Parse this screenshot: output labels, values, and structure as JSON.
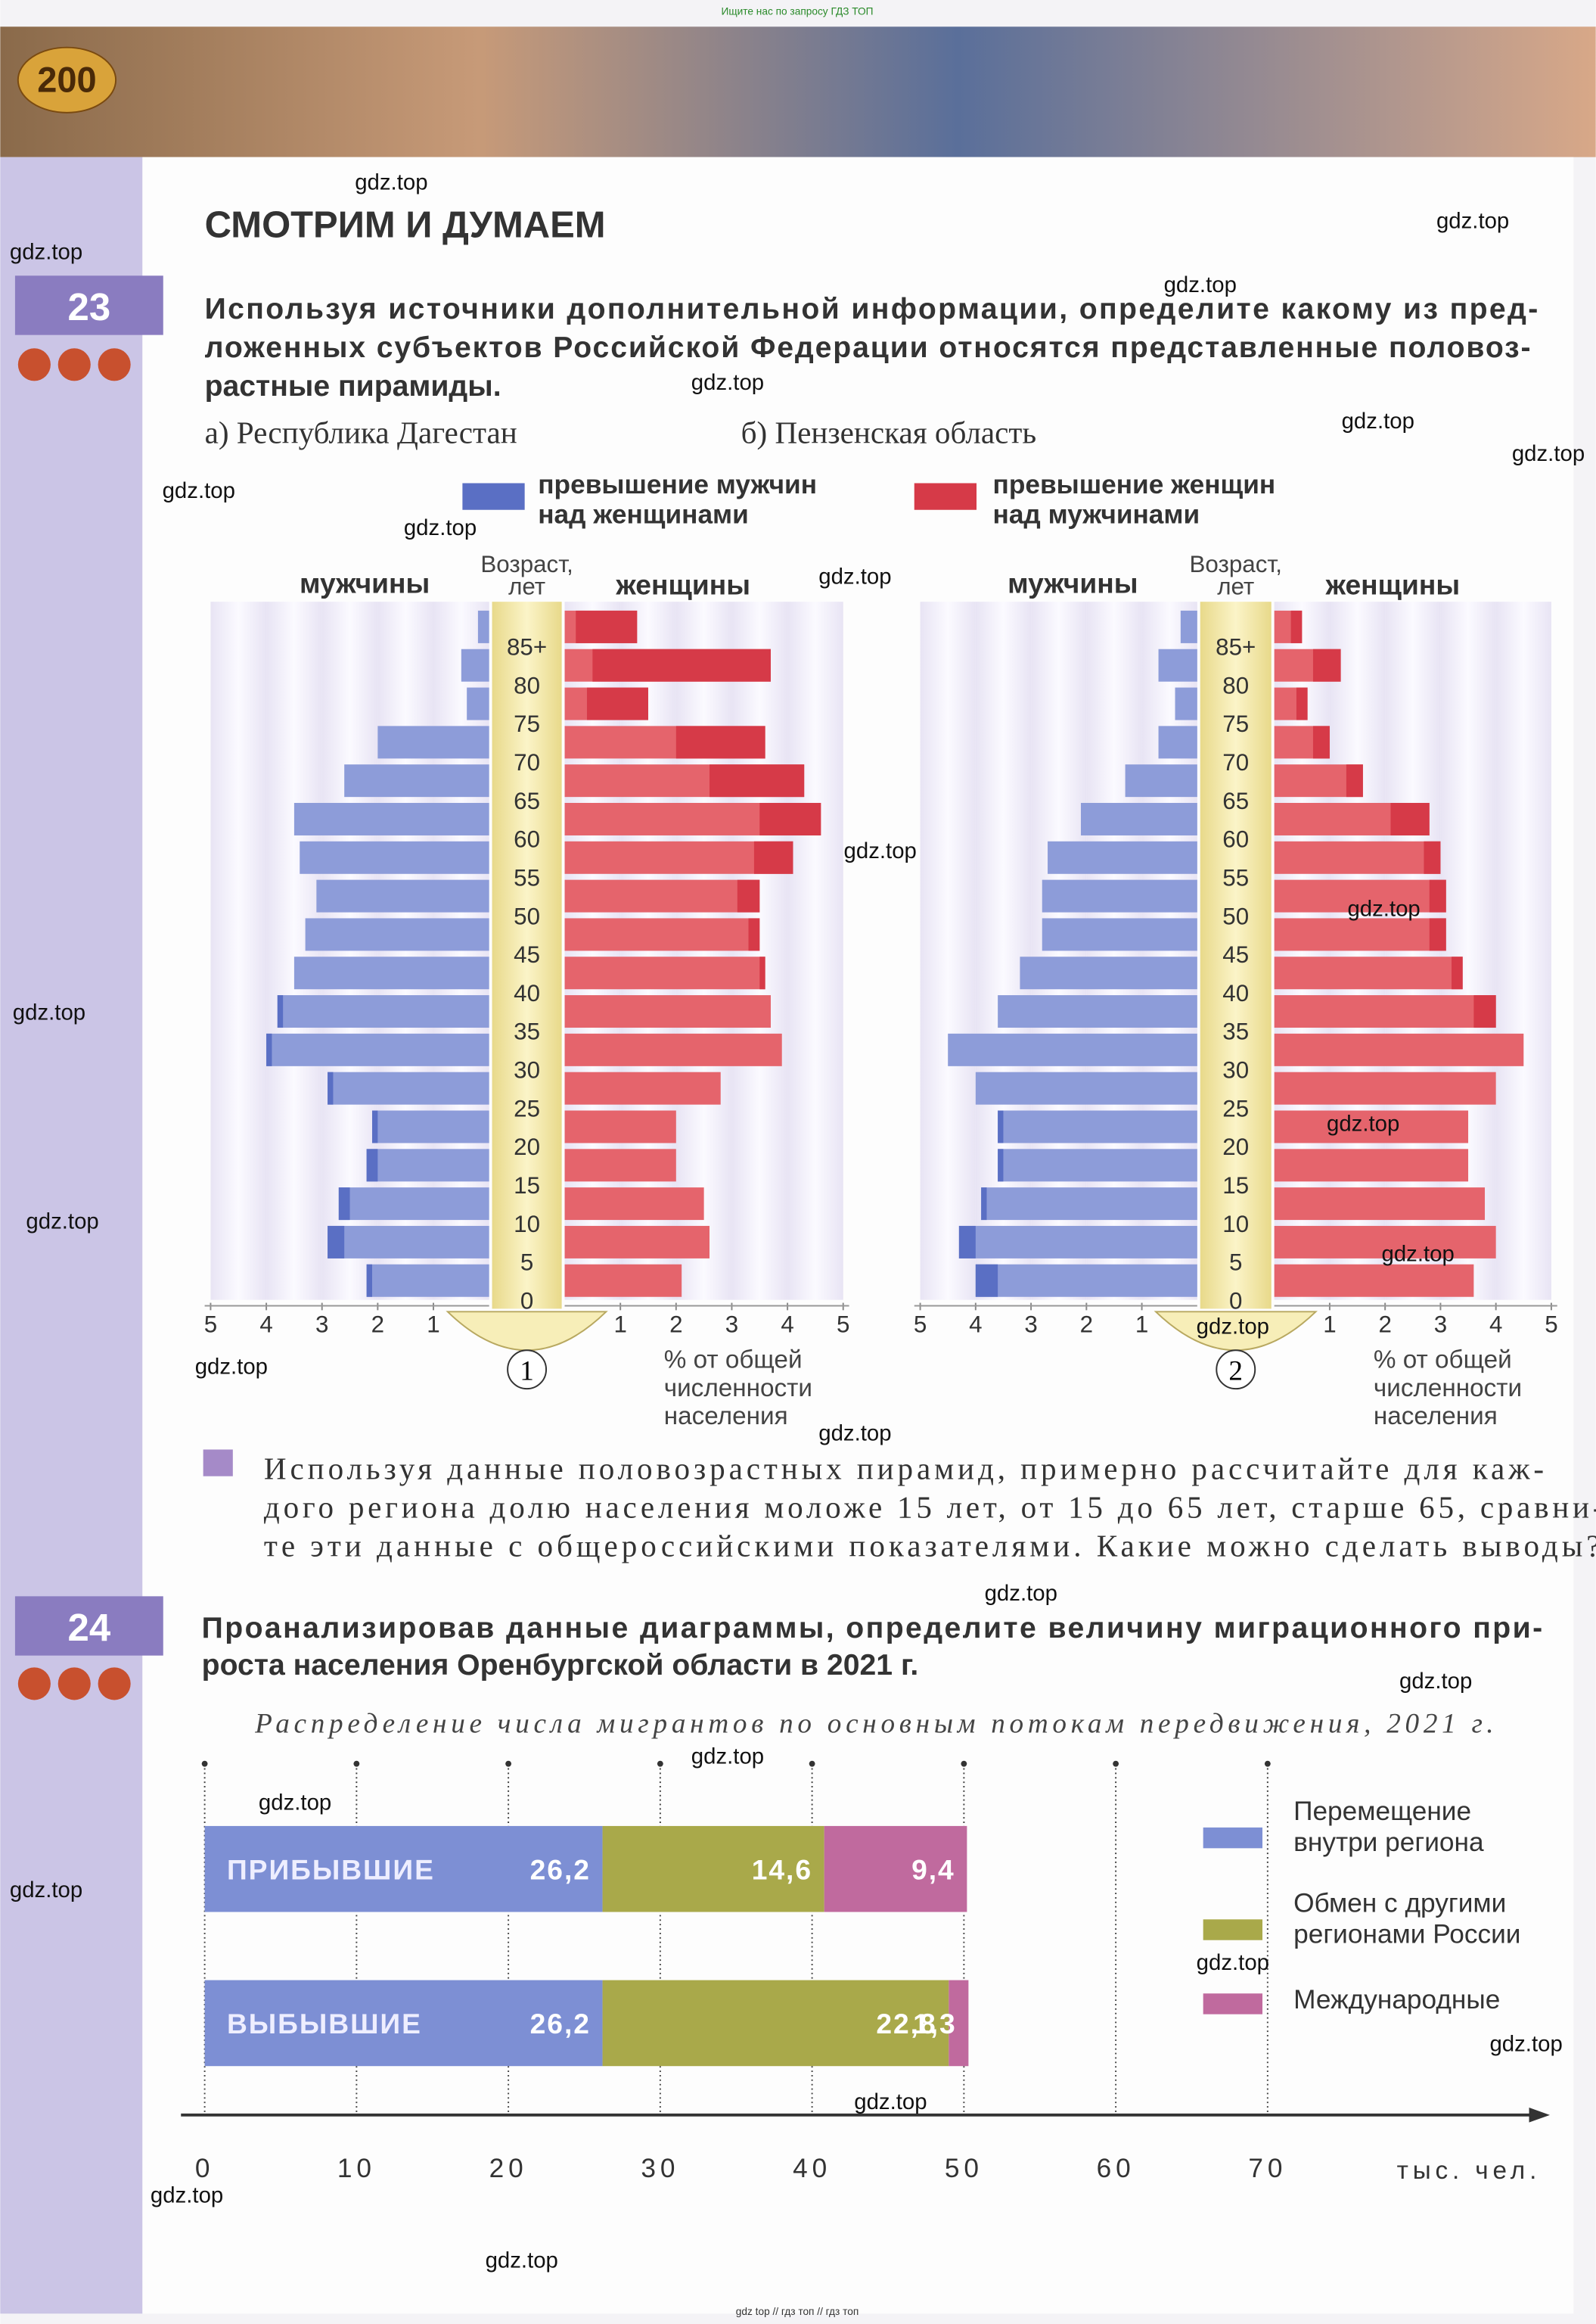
{
  "banner": "Ищите нас по запросу ГДЗ ТОП",
  "page_number": "200",
  "section_title": "СМОТРИМ И ДУМАЕМ",
  "task23": {
    "number": "23",
    "lines": [
      "Используя источники дополнительной информации, определите какому из пред-",
      "ложенных субъектов Российской Федерации относятся представленные половоз-",
      "растные пирамиды."
    ],
    "options": [
      "а) Республика Дагестан",
      "б) Пензенская область"
    ],
    "legend": {
      "male_excess": {
        "color": "#5a6fc4",
        "lines": [
          "превышение мужчин",
          "над женщинами"
        ]
      },
      "female_excess": {
        "color": "#d63a48",
        "lines": [
          "превышение женщин",
          "над мужчинами"
        ]
      }
    },
    "question_lines": [
      "Используя данные половозрастных пирамид, примерно рассчитайте для каж-",
      "дого региона долю населения моложе 15 лет, от 15 до 65 лет, старше 65, сравни-",
      "те эти данные с общероссийскими показателями. Какие можно сделать выводы?"
    ]
  },
  "task24": {
    "number": "24",
    "lines": [
      "Проанализировав данные диаграммы, определите величину миграционного при-",
      "роста населения Оренбургской области в 2021 г."
    ]
  },
  "chart_data": [
    {
      "type": "pyramid",
      "number": "1",
      "axis_title": [
        "Возраст,",
        "лет"
      ],
      "x_label": [
        "% от общей",
        "численности",
        "населения"
      ],
      "categories": [
        "0",
        "5",
        "10",
        "15",
        "20",
        "25",
        "30",
        "35",
        "40",
        "45",
        "50",
        "55",
        "60",
        "65",
        "70",
        "75",
        "80",
        "85+"
      ],
      "series": [
        {
          "name": "мужчины",
          "color": "#8d9cd9",
          "values": [
            2.2,
            2.9,
            2.7,
            2.2,
            2.1,
            2.9,
            4.0,
            3.8,
            3.5,
            3.3,
            3.1,
            3.4,
            3.5,
            2.6,
            2.0,
            0.4,
            0.5,
            0.2
          ]
        },
        {
          "name": "женщины",
          "color": "#e5646c",
          "values": [
            2.1,
            2.6,
            2.5,
            2.0,
            2.0,
            2.8,
            3.9,
            3.7,
            3.6,
            3.5,
            3.5,
            4.1,
            4.6,
            4.3,
            3.6,
            1.5,
            3.7,
            1.3
          ]
        }
      ],
      "xlim": [
        0,
        5
      ],
      "xticks": [
        1,
        2,
        3,
        4,
        5
      ]
    },
    {
      "type": "pyramid",
      "number": "2",
      "axis_title": [
        "Возраст,",
        "лет"
      ],
      "x_label": [
        "% от общей",
        "численности",
        "населения"
      ],
      "categories": [
        "0",
        "5",
        "10",
        "15",
        "20",
        "25",
        "30",
        "35",
        "40",
        "45",
        "50",
        "55",
        "60",
        "65",
        "70",
        "75",
        "80",
        "85+"
      ],
      "series": [
        {
          "name": "мужчины",
          "color": "#8d9cd9",
          "values": [
            4.0,
            4.3,
            3.9,
            3.6,
            3.6,
            4.0,
            4.5,
            3.6,
            3.2,
            2.8,
            2.8,
            2.7,
            2.1,
            1.3,
            0.7,
            0.4,
            0.7,
            0.3
          ]
        },
        {
          "name": "женщины",
          "color": "#e5646c",
          "values": [
            3.6,
            4.0,
            3.8,
            3.5,
            3.5,
            4.0,
            4.5,
            4.0,
            3.4,
            3.1,
            3.1,
            3.0,
            2.8,
            1.6,
            1.0,
            0.6,
            1.2,
            0.5
          ]
        }
      ],
      "xlim": [
        0,
        5
      ],
      "xticks": [
        1,
        2,
        3,
        4,
        5
      ]
    },
    {
      "type": "stacked_bar",
      "title": "Распределение числа мигрантов по основным потокам передвижения, 2021 г.",
      "categories": [
        "ПРИБЫВШИЕ",
        "ВЫБЫВШИЕ"
      ],
      "series": [
        {
          "name": [
            "Перемещение",
            "внутри региона"
          ],
          "color": "#7d8fd4",
          "values": [
            26.2,
            26.2
          ],
          "value_labels": [
            "26,2",
            "26,2"
          ]
        },
        {
          "name": [
            "Обмен с другими",
            "регионами России"
          ],
          "color": "#a9a94a",
          "values": [
            14.6,
            22.8
          ],
          "value_labels": [
            "14,6",
            "22,8"
          ]
        },
        {
          "name": [
            "Международные"
          ],
          "color": "#c06a9e",
          "values": [
            9.4,
            1.3
          ],
          "value_labels": [
            "9,4",
            "1,3"
          ]
        }
      ],
      "x_label": "тыс. чел.",
      "xlim": [
        0,
        88
      ],
      "xticks": [
        0,
        10,
        20,
        30,
        40,
        50,
        60,
        70
      ]
    }
  ],
  "watermarks": [
    "gdz.top",
    "gdz.top",
    "gdz.top",
    "gdz.top",
    "gdz.top",
    "gdz.top",
    "gdz.top",
    "gdz.top",
    "gdz.top",
    "gdz.top",
    "gdz.top",
    "gdz.top",
    "gdz.top",
    "gdz.top",
    "gdz.top",
    "gdz.top",
    "gdz.top",
    "gdz.top",
    "gdz.top",
    "gdz.top",
    "gdz.top",
    "gdz.top",
    "gdz.top",
    "gdz.top",
    "gdz.top",
    "gdz.top",
    "gdz.top",
    "gdz.top",
    "gdz.top"
  ],
  "footer": "gdz top // гдз топ // гдз топ"
}
